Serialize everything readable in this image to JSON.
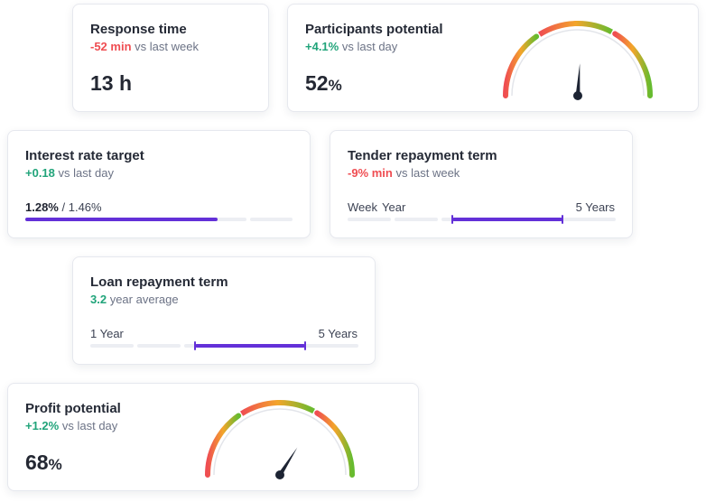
{
  "colors": {
    "accent": "#6330d8",
    "positive": "#21a47a",
    "negative": "#ef4d52",
    "gauge_gradient": [
      "#ef4d52",
      "#f3a52b",
      "#66bb2f"
    ]
  },
  "cards": {
    "response_time": {
      "title": "Response time",
      "delta": "-52 min",
      "delta_suffix": "vs last week",
      "value": "13 h"
    },
    "participants_potential": {
      "title": "Participants potential",
      "delta": "+4.1%",
      "delta_suffix": "vs last day",
      "value": "52",
      "unit": "%",
      "gauge_level": 0.52
    },
    "interest_rate_target": {
      "title": "Interest rate target",
      "delta": "+0.18",
      "delta_suffix": "vs last day",
      "value": "1.28%",
      "target": "/ 1.46%",
      "progress": 0.72
    },
    "tender_repayment_term": {
      "title": "Tender repayment term",
      "delta": "-9%",
      "delta_unit": "min",
      "delta_suffix": "vs last week",
      "label_left_1": "Week",
      "label_left_2": "Year",
      "label_right": "5 Years",
      "range_start": 0.39,
      "range_end": 0.8
    },
    "loan_repayment_term": {
      "title": "Loan repayment term",
      "delta": "3.2",
      "delta_suffix": "year average",
      "label_left": "1 Year",
      "label_right": "5 Years",
      "range_start": 0.39,
      "range_end": 0.8
    },
    "profit_potential": {
      "title": "Profit potential",
      "delta": "+1.2%",
      "delta_suffix": "vs last day",
      "value": "68",
      "unit": "%",
      "gauge_level": 0.68
    }
  }
}
